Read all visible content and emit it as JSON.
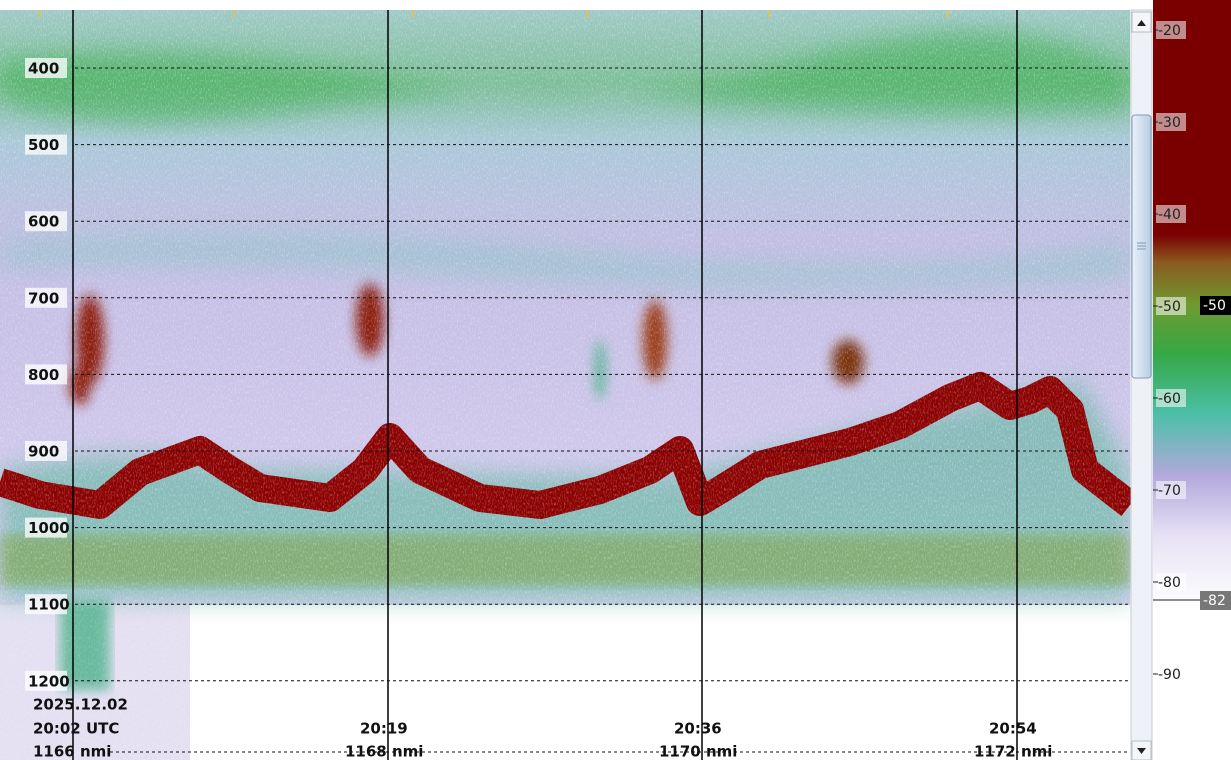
{
  "depth_axis": {
    "labels": [
      "400",
      "500",
      "600",
      "700",
      "800",
      "900",
      "1000",
      "1100",
      "1200"
    ]
  },
  "time_axis": {
    "date": "2025.12.02",
    "marks": [
      {
        "time": "20:02 UTC",
        "distance": "1166 nmi"
      },
      {
        "time": "20:19",
        "distance": "1168 nmi"
      },
      {
        "time": "20:36",
        "distance": "1170 nmi"
      },
      {
        "time": "20:54",
        "distance": "1172 nmi"
      }
    ]
  },
  "color_scale": {
    "labels": [
      "-20",
      "-30",
      "-40",
      "-50",
      "-60",
      "-70",
      "-80",
      "-90"
    ],
    "upper_marker": "-50",
    "lower_marker": "-82"
  }
}
